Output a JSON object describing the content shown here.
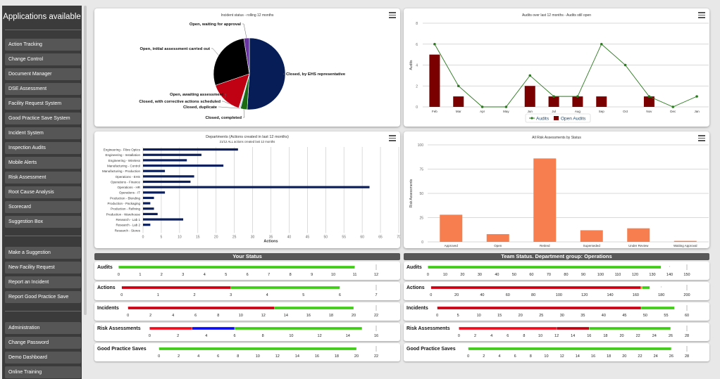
{
  "sidebar": {
    "title": "Applications available",
    "groups": [
      [
        "Action Tracking",
        "Change Control",
        "Document Manager",
        "DSE Assessment",
        "Facility Request System",
        "Good Practice Save System",
        "Incident System",
        "Inspection Audits",
        "Mobile Alerts",
        "Risk Assessment",
        "Root Cause Analysis",
        "Scorecard",
        "Suggestion Box"
      ],
      [
        "Make a Suggestion",
        "New Facility Request",
        "Report an Incident",
        "Report Good Practice Save"
      ],
      [
        "Administration",
        "Change Password",
        "Demo Dashboard",
        "Online Training"
      ]
    ]
  },
  "chart_data": [
    {
      "id": "incident-pie",
      "type": "pie",
      "title": "Incident status - rolling 12 months",
      "slices": [
        {
          "label": "Closed, by EHS representative",
          "value": 51,
          "color": "#061d57"
        },
        {
          "label": "Closed, completed",
          "value": 3,
          "color": "#1a6b12"
        },
        {
          "label": "Closed, duplicate",
          "value": 0.5,
          "color": "#8ecbf5"
        },
        {
          "label": "Closed, with corrective actions scheduled",
          "value": 0.3,
          "color": "#cfcfcf"
        },
        {
          "label": "Open, awaiting assessment",
          "value": 15,
          "color": "#c00013"
        },
        {
          "label": "Open, initial assessment carried out",
          "value": 27.7,
          "color": "#000000"
        },
        {
          "label": "Open, waiting for approval",
          "value": 2.5,
          "color": "#6a35a0"
        }
      ]
    },
    {
      "id": "audits-combo",
      "type": "bar+line",
      "title": "Audits over last 12 months - Audits still open",
      "ylabel": "Audits",
      "ylim": [
        0,
        8
      ],
      "yticks": [
        0,
        2,
        4,
        6,
        8
      ],
      "categories": [
        "Feb",
        "Mar",
        "Apr",
        "May",
        "Jun",
        "Jul",
        "Aug",
        "Sep",
        "Oct",
        "Nov",
        "Dec",
        "Jan"
      ],
      "series": [
        {
          "name": "Audits",
          "type": "line",
          "color": "#2a7a1e",
          "values": [
            6,
            2,
            0,
            0,
            3,
            1,
            1,
            6,
            4,
            1,
            0,
            1
          ]
        },
        {
          "name": "Open Audits",
          "type": "bar",
          "color": "#7a0000",
          "values": [
            5,
            1,
            0,
            0,
            2,
            1,
            1,
            1,
            0,
            1,
            0,
            0
          ]
        }
      ],
      "legend": "bottom"
    },
    {
      "id": "departments-bar",
      "type": "bar",
      "orientation": "horizontal",
      "title": "Departments (Actions created in last 12 months)",
      "subtitle": "21/12 ALL actions created last 12 months",
      "xlabel": "Actions",
      "xlim": [
        0,
        70
      ],
      "xticks": [
        0,
        5,
        10,
        15,
        20,
        25,
        30,
        35,
        40,
        45,
        50,
        55,
        60,
        65,
        70
      ],
      "color": "#0b1f5c",
      "categories": [
        "Engineering - Fibre Optics",
        "Engineering - Installation",
        "Engineering - Wireless",
        "Manufacturing - Control",
        "Manufacturing - Production",
        "Operations - EHS",
        "Operations - Finance",
        "Operations - HR",
        "Operations - IT",
        "Production - Blending",
        "Production - Packaging",
        "Production - Refining",
        "Production - Warehouse",
        "Research - Lab 1",
        "Research - Lab 2",
        "Research - Stores"
      ],
      "values": [
        26,
        16,
        12,
        22,
        6,
        14,
        13,
        62,
        6,
        3,
        2,
        3,
        4,
        11,
        2,
        0
      ]
    },
    {
      "id": "risk-bar",
      "type": "bar",
      "title": "All Risk Assessments by Status",
      "ylabel": "Risk Assessments",
      "ylim": [
        0,
        100
      ],
      "yticks": [
        0,
        25,
        50,
        75,
        100
      ],
      "color": "#f77f4f",
      "categories": [
        "Approved",
        "Open",
        "Retired",
        "Superseded",
        "Under Review",
        "Waiting Approval"
      ],
      "values": [
        28,
        8,
        86,
        12,
        14,
        1
      ]
    }
  ],
  "your_status": {
    "title": "Your Status",
    "rows": [
      {
        "label": "Audits",
        "max": 12,
        "step": 1,
        "segments": [
          {
            "value": 11,
            "color": "#3fcc14"
          }
        ]
      },
      {
        "label": "Actions",
        "max": 7,
        "step": 1,
        "segments": [
          {
            "value": 3,
            "color": "#cc0010"
          },
          {
            "value": 3,
            "color": "#3fcc14"
          }
        ]
      },
      {
        "label": "Incidents",
        "max": 22,
        "step": 2,
        "segments": [
          {
            "value": 13,
            "color": "#cc0010"
          },
          {
            "value": 7,
            "color": "#3fcc14"
          }
        ]
      },
      {
        "label": "Risk Assessments",
        "max": 16,
        "step": 2,
        "segments": [
          {
            "value": 3,
            "color": "#f20d1c"
          },
          {
            "value": 3,
            "color": "#0b0bf5"
          },
          {
            "value": 9,
            "color": "#3fcc14"
          }
        ]
      },
      {
        "label": "Good Practice Saves",
        "max": 22,
        "step": 2,
        "segments": [
          {
            "value": 20,
            "color": "#3fcc14"
          }
        ]
      }
    ]
  },
  "team_status": {
    "title": "Team Status. Department group: Operations",
    "rows": [
      {
        "label": "Audits",
        "max": 150,
        "step": 10,
        "segments": [
          {
            "value": 135,
            "color": "#3fcc14"
          }
        ]
      },
      {
        "label": "Actions",
        "max": 200,
        "step": 20,
        "segments": [
          {
            "value": 164,
            "color": "#cc0010"
          },
          {
            "value": 1,
            "color": "#f59a3c"
          },
          {
            "value": 6,
            "color": "#3fcc14"
          }
        ]
      },
      {
        "label": "Incidents",
        "max": 60,
        "step": 5,
        "segments": [
          {
            "value": 49,
            "color": "#cc0010"
          },
          {
            "value": 8,
            "color": "#3fcc14"
          }
        ]
      },
      {
        "label": "Risk Assessments",
        "max": 28,
        "step": 2,
        "segments": [
          {
            "value": 12,
            "color": "#f20d1c"
          },
          {
            "value": 4,
            "color": "#c2000e"
          },
          {
            "value": 10,
            "color": "#3fcc14"
          }
        ]
      },
      {
        "label": "Good Practice Saves",
        "max": 28,
        "step": 2,
        "segments": [
          {
            "value": 26,
            "color": "#3fcc14"
          }
        ]
      }
    ]
  }
}
